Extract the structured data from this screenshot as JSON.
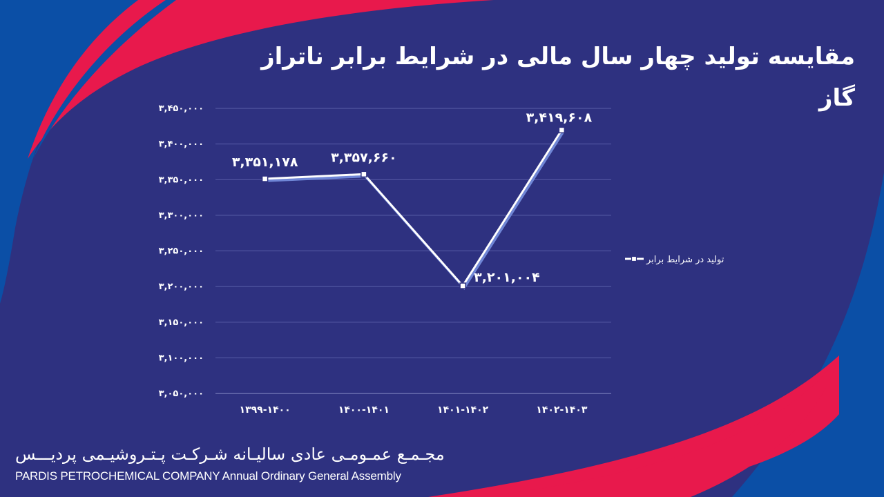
{
  "title": "مقایسه تولید چهار سال مالی در شرایط برابر ناتراز گاز",
  "footer": {
    "persian": "مجـمـع عمـومـی عادی سالیـانه شـرکـت پـتـروشیـمی پردیـــس",
    "english": "PARDIS PETROCHEMICAL COMPANY Annual Ordinary General Assembly"
  },
  "colors": {
    "background": "#2e3180",
    "line": "#ffffff",
    "line_shadow": "#6f86d6",
    "grid": "#5a5fa8",
    "accent_red": "#e8194c",
    "accent_blue": "#0b4fa6"
  },
  "chart_data": {
    "type": "line",
    "categories": [
      "۱۳۹۹-۱۴۰۰",
      "۱۴۰۰-۱۴۰۱",
      "۱۴۰۱-۱۴۰۲",
      "۱۴۰۲-۱۴۰۳"
    ],
    "series": [
      {
        "name": "تولید در شرایط برابر",
        "values": [
          3351178,
          3357660,
          3201004,
          3419608
        ],
        "data_labels": [
          "۳,۳۵۱,۱۷۸",
          "۳,۳۵۷,۶۶۰",
          "۳,۲۰۱,۰۰۴",
          "۳,۴۱۹,۶۰۸"
        ]
      }
    ],
    "ylim": [
      3050000,
      3450000
    ],
    "y_ticks": [
      3050000,
      3100000,
      3150000,
      3200000,
      3250000,
      3300000,
      3350000,
      3400000,
      3450000
    ],
    "y_tick_labels": [
      "۳,۰۵۰,۰۰۰",
      "۳,۱۰۰,۰۰۰",
      "۳,۱۵۰,۰۰۰",
      "۳,۲۰۰,۰۰۰",
      "۳,۲۵۰,۰۰۰",
      "۳,۳۰۰,۰۰۰",
      "۳,۳۵۰,۰۰۰",
      "۳,۴۰۰,۰۰۰",
      "۳,۴۵۰,۰۰۰"
    ],
    "grid": true,
    "legend_position": "right",
    "marker": "square"
  }
}
